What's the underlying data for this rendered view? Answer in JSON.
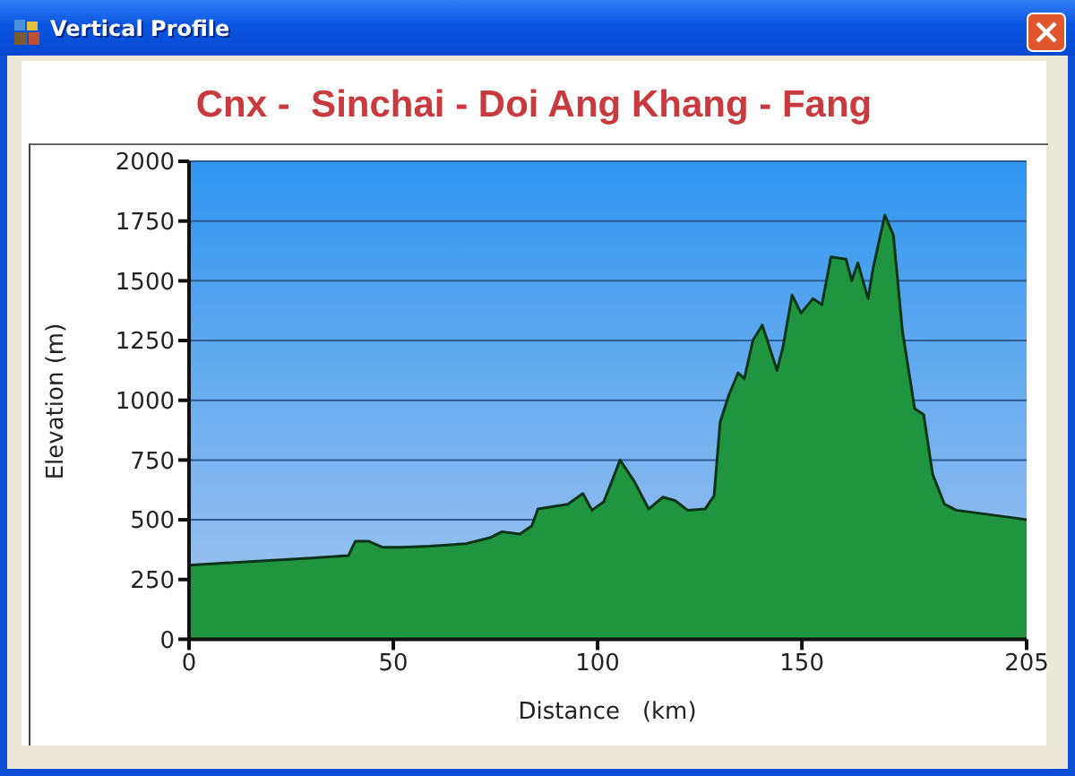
{
  "chart_data": {
    "type": "area",
    "title": "Cnx -  Sinchai - Doi Ang Khang - Fang",
    "xlabel": "Distance   (km)",
    "ylabel": "Elevation (m)",
    "annotations": [
      "Vertical Profile"
    ],
    "x": [
      0,
      15,
      30,
      39,
      40.7,
      44,
      47.3,
      52,
      59,
      67.8,
      73.7,
      76.6,
      81,
      83.9,
      85.4,
      92.7,
      96.4,
      98.6,
      101.5,
      103,
      105.5,
      109,
      112.5,
      116,
      119,
      122,
      126.3,
      128.5,
      130,
      132.2,
      134.4,
      135.9,
      138,
      140.3,
      142.5,
      143.9,
      145.4,
      147.6,
      149.8,
      152.7,
      154.9,
      157.1,
      160.8,
      162.2,
      163.7,
      166.2,
      167.4,
      170.3,
      172.4,
      174.6,
      177.6,
      179.8,
      182,
      184.9,
      187.8,
      201,
      205
    ],
    "series": [
      {
        "color": "#209540",
        "values": [
          310,
          325,
          340,
          350,
          410,
          410,
          385,
          385,
          390,
          400,
          425,
          450,
          440,
          475,
          545,
          565,
          610,
          540,
          575,
          640,
          750,
          660,
          545,
          595,
          580,
          540,
          545,
          600,
          910,
          1025,
          1115,
          1090,
          1250,
          1315,
          1200,
          1125,
          1225,
          1440,
          1365,
          1425,
          1400,
          1600,
          1590,
          1500,
          1575,
          1425,
          1550,
          1775,
          1690,
          1290,
          965,
          940,
          690,
          565,
          540,
          510,
          500
        ]
      }
    ],
    "xlim": [
      0,
      205
    ],
    "xticks": [
      0,
      50,
      100,
      150,
      205
    ],
    "ylim": [
      0,
      2000
    ],
    "yticks": [
      0,
      250,
      500,
      750,
      1000,
      1250,
      1500,
      1750,
      2000
    ],
    "grid": "y"
  }
}
